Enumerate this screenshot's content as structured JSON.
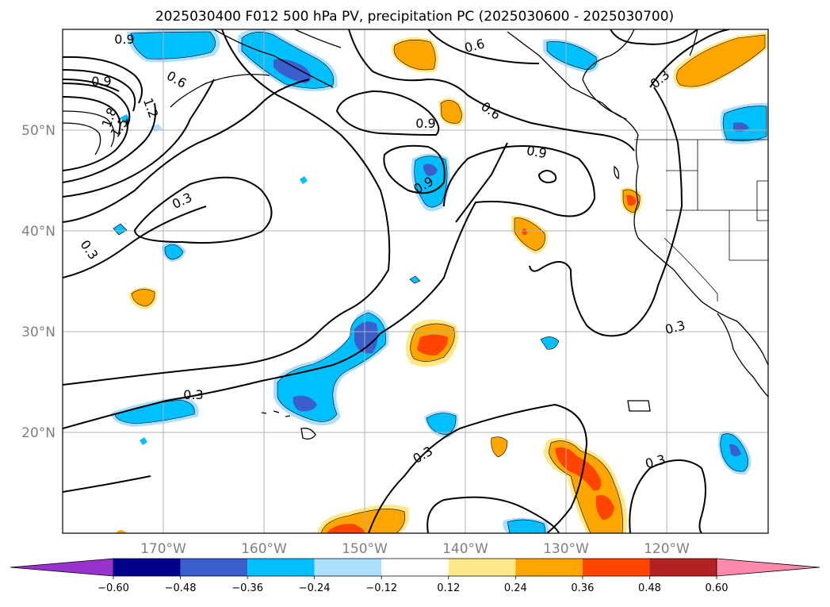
{
  "chart_data": {
    "type": "contour_map",
    "title": "2025030400 F012 500 hPa PV, precipitation PC (2025030600 - 2025030700)",
    "x_axis": {
      "range": [
        -180,
        -110
      ],
      "ticks": [
        -170,
        -160,
        -150,
        -140,
        -130,
        -120
      ],
      "tick_labels": [
        "170°W",
        "160°W",
        "150°W",
        "140°W",
        "130°W",
        "120°W"
      ]
    },
    "y_axis": {
      "range": [
        10,
        60
      ],
      "ticks": [
        20,
        30,
        40,
        50
      ],
      "tick_labels": [
        "20°N",
        "30°N",
        "40°N",
        "50°N"
      ]
    },
    "grid": true,
    "colorbar": {
      "position": "bottom",
      "extend": "both",
      "levels": [
        -0.6,
        -0.48,
        -0.36,
        -0.24,
        -0.12,
        0.12,
        0.24,
        0.36,
        0.48,
        0.6
      ],
      "tick_labels": [
        "−0.60",
        "−0.48",
        "−0.36",
        "−0.24",
        "−0.12",
        "0.12",
        "0.24",
        "0.36",
        "0.48",
        "0.60"
      ],
      "colors": [
        "#9932CC",
        "#00008B",
        "#3A5FCD",
        "#00BFFF",
        "#ADDFFF",
        "#FFFFFF",
        "#FFE88A",
        "#FFA500",
        "#FF4500",
        "#B22222",
        "#FF89AC"
      ]
    },
    "pv_contour_labels": [
      "0.9",
      "0.9",
      "0.6",
      "1.2",
      "1.8",
      "1.5",
      "0.6",
      "0.9",
      "0.3",
      "0.6",
      "0.9",
      "0.9",
      "0.3",
      "0.3",
      "0.3",
      "0.3",
      "0.3",
      "0.3"
    ],
    "pv_contour_levels": [
      0.3,
      0.6,
      0.9,
      1.2,
      1.5,
      1.8
    ],
    "precip_pc_features": [
      {
        "kind": "positive",
        "lon": -146,
        "lat": 28.5,
        "peak": 0.42
      },
      {
        "kind": "positive",
        "lon": -127,
        "lat": 15.5,
        "peak": 0.42
      },
      {
        "kind": "positive",
        "lon": -145,
        "lat": 57.5,
        "peak": 0.3
      },
      {
        "kind": "positive",
        "lon": -141,
        "lat": 51.5,
        "peak": 0.3
      },
      {
        "kind": "positive",
        "lon": -136,
        "lat": 39.5,
        "peak": 0.36
      },
      {
        "kind": "positive",
        "lon": -124,
        "lat": 42.5,
        "peak": 0.4
      },
      {
        "kind": "positive",
        "lon": -116,
        "lat": 57,
        "peak": 0.3
      },
      {
        "kind": "positive",
        "lon": -172,
        "lat": 33.5,
        "peak": 0.3
      },
      {
        "kind": "positive",
        "lon": -150,
        "lat": 10.5,
        "peak": 0.42
      },
      {
        "kind": "negative",
        "lon": -152,
        "lat": 24,
        "peak": -0.4
      },
      {
        "kind": "negative",
        "lon": -149,
        "lat": 29,
        "peak": -0.4
      },
      {
        "kind": "negative",
        "lon": -157,
        "lat": 56.5,
        "peak": -0.4
      },
      {
        "kind": "negative",
        "lon": -171,
        "lat": 58,
        "peak": -0.3
      },
      {
        "kind": "negative",
        "lon": -143,
        "lat": 45.5,
        "peak": -0.4
      },
      {
        "kind": "negative",
        "lon": -112.5,
        "lat": 50.5,
        "peak": -0.4
      },
      {
        "kind": "negative",
        "lon": -166,
        "lat": 21,
        "peak": -0.3
      },
      {
        "kind": "negative",
        "lon": -113.5,
        "lat": 17.5,
        "peak": -0.4
      },
      {
        "kind": "negative",
        "lon": -142,
        "lat": 21,
        "peak": -0.3
      },
      {
        "kind": "negative",
        "lon": -132,
        "lat": 57.5,
        "peak": -0.3
      }
    ]
  }
}
